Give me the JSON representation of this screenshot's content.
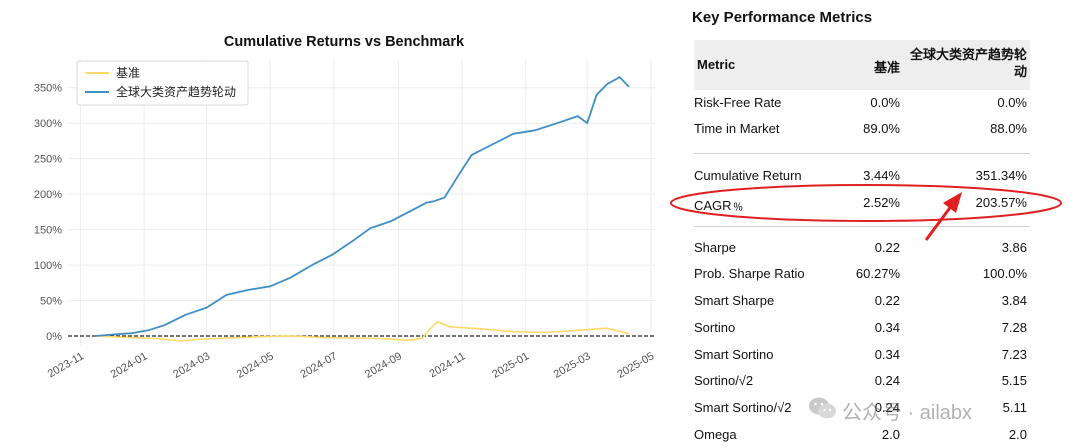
{
  "chart_data": {
    "type": "line",
    "title": "Cumulative Returns vs Benchmark",
    "x_tick_labels": [
      "2023-11",
      "2024-01",
      "2024-03",
      "2024-05",
      "2024-07",
      "2024-09",
      "2024-11",
      "2025-01",
      "2025-03",
      "2025-05"
    ],
    "y_tick_labels": [
      "0%",
      "50%",
      "100%",
      "150%",
      "200%",
      "250%",
      "300%",
      "350%"
    ],
    "ylim": [
      -10,
      375
    ],
    "xlim": [
      "2023-10-20",
      "2025-05-05"
    ],
    "grid": true,
    "legend_position": "top-left",
    "series": [
      {
        "name": "基准",
        "color": "#ffd86b",
        "x": [
          "2023-11-15",
          "2023-12-15",
          "2024-01-15",
          "2024-02-05",
          "2024-02-20",
          "2024-03-20",
          "2024-04-20",
          "2024-05-20",
          "2024-06-20",
          "2024-07-20",
          "2024-08-20",
          "2024-09-10",
          "2024-09-24",
          "2024-09-30",
          "2024-10-08",
          "2024-10-20",
          "2024-11-20",
          "2024-12-20",
          "2025-01-20",
          "2025-02-20",
          "2025-03-20",
          "2025-04-10"
        ],
        "y": [
          0,
          -2,
          -4,
          -7,
          -5,
          -3,
          -1,
          0,
          -2,
          -3,
          -4,
          -6,
          -3,
          8,
          20,
          13,
          10,
          6,
          5,
          8,
          11,
          3.44
        ]
      },
      {
        "name": "全球大类资产趋势轮动",
        "color": "#3f8fc4",
        "x": [
          "2023-11-15",
          "2023-12-01",
          "2023-12-20",
          "2024-01-05",
          "2024-01-20",
          "2024-02-10",
          "2024-03-01",
          "2024-03-20",
          "2024-04-10",
          "2024-05-01",
          "2024-05-20",
          "2024-06-10",
          "2024-06-30",
          "2024-07-20",
          "2024-08-05",
          "2024-08-25",
          "2024-09-15",
          "2024-09-28",
          "2024-10-05",
          "2024-10-15",
          "2024-10-30",
          "2024-11-10",
          "2024-11-30",
          "2024-12-20",
          "2025-01-10",
          "2025-01-31",
          "2025-02-20",
          "2025-03-01",
          "2025-03-10",
          "2025-03-20",
          "2025-04-01",
          "2025-04-10"
        ],
        "y": [
          0,
          2,
          4,
          8,
          15,
          30,
          40,
          58,
          65,
          70,
          82,
          100,
          115,
          135,
          152,
          162,
          178,
          188,
          190,
          195,
          230,
          255,
          270,
          285,
          290,
          300,
          310,
          300,
          340,
          355,
          365,
          351.34
        ]
      }
    ]
  },
  "metrics": {
    "title": "Key Performance Metrics",
    "headers": {
      "metric": "Metric",
      "benchmark": "基准",
      "strategy": "全球大类资产趋势轮动"
    },
    "rows": [
      {
        "metric": "Risk-Free Rate",
        "benchmark": "0.0%",
        "strategy": "0.0%"
      },
      {
        "metric": "Time in Market",
        "benchmark": "89.0%",
        "strategy": "88.0%"
      },
      {
        "metric": "Cumulative Return",
        "benchmark": "3.44%",
        "strategy": "351.34%"
      },
      {
        "metric": "CAGR﹪",
        "benchmark": "2.52%",
        "strategy": "203.57%"
      },
      {
        "metric": "Sharpe",
        "benchmark": "0.22",
        "strategy": "3.86"
      },
      {
        "metric": "Prob. Sharpe Ratio",
        "benchmark": "60.27%",
        "strategy": "100.0%"
      },
      {
        "metric": "Smart Sharpe",
        "benchmark": "0.22",
        "strategy": "3.84"
      },
      {
        "metric": "Sortino",
        "benchmark": "0.34",
        "strategy": "7.28"
      },
      {
        "metric": "Smart Sortino",
        "benchmark": "0.34",
        "strategy": "7.23"
      },
      {
        "metric": "Sortino/√2",
        "benchmark": "0.24",
        "strategy": "5.15"
      },
      {
        "metric": "Smart Sortino/√2",
        "benchmark": "0.24",
        "strategy": "5.11"
      },
      {
        "metric": "Omega",
        "benchmark": "2.0",
        "strategy": "2.0"
      }
    ]
  },
  "annotation": {
    "ellipse_color": "#e02020",
    "arrow_color": "#e02020"
  },
  "watermark": {
    "text": "公众号 · ailabx",
    "icon": "wechat-icon"
  }
}
